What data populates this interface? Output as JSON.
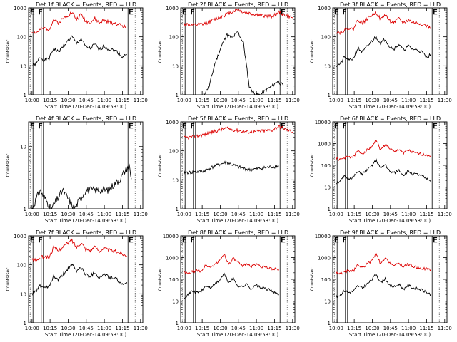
{
  "figure": {
    "background": "#ffffff",
    "event_color": "#000000",
    "lld_color": "#dd0000",
    "marker_labels": [
      "E",
      "F",
      "E"
    ]
  },
  "chart_data": [
    {
      "type": "line",
      "title": "Det 1f BLACK = Events, RED = LLD",
      "xlabel": "Start Time (20-Dec-14 09:53:00)",
      "ylabel": "Counts/sec",
      "xticks": [
        "10:00",
        "10:15",
        "10:30",
        "10:45",
        "11:00",
        "11:15",
        "11:30"
      ],
      "ytick_labels": [
        "1",
        "10",
        "100",
        "1000"
      ],
      "xlim": [
        0,
        100
      ],
      "ylim": [
        1,
        1000
      ],
      "yscale": "log",
      "markers": [
        {
          "label": "E",
          "x": 2
        },
        {
          "label": "F",
          "x": 8
        },
        {
          "label": "E",
          "x": 87
        }
      ],
      "series": [
        {
          "name": "Events",
          "color": "#000000",
          "x": [
            3,
            7,
            10,
            14,
            18,
            22,
            26,
            30,
            34,
            38,
            42,
            46,
            50,
            54,
            58,
            62,
            66,
            70,
            74,
            78,
            82,
            86
          ],
          "y": [
            10,
            12,
            20,
            15,
            18,
            40,
            30,
            45,
            70,
            100,
            60,
            85,
            45,
            40,
            55,
            35,
            48,
            38,
            35,
            30,
            20,
            25
          ]
        },
        {
          "name": "LLD",
          "color": "#dd0000",
          "x": [
            3,
            7,
            10,
            14,
            18,
            22,
            26,
            30,
            34,
            38,
            42,
            46,
            50,
            54,
            58,
            62,
            66,
            70,
            74,
            78,
            82,
            86
          ],
          "y": [
            150,
            140,
            170,
            200,
            180,
            400,
            300,
            420,
            550,
            700,
            400,
            600,
            350,
            320,
            420,
            300,
            380,
            320,
            300,
            280,
            240,
            200
          ]
        }
      ]
    },
    {
      "type": "line",
      "title": "Det 2f BLACK = Events, RED = LLD",
      "xlabel": "Start Time (20-Dec-14 09:53:00)",
      "ylabel": "Counts/sec",
      "xticks": [
        "10:00",
        "10:15",
        "10:30",
        "10:45",
        "11:00",
        "11:15",
        "11:30"
      ],
      "ytick_labels": [
        "1",
        "10",
        "100",
        "1000"
      ],
      "xlim": [
        0,
        100
      ],
      "ylim": [
        1,
        1000
      ],
      "yscale": "log",
      "markers": [
        {
          "label": "E",
          "x": 2
        },
        {
          "label": "F",
          "x": 8
        },
        {
          "label": "E",
          "x": 87
        }
      ],
      "series": [
        {
          "name": "Events",
          "color": "#000000",
          "x": [
            20,
            25,
            30,
            35,
            40,
            45,
            50,
            55,
            60,
            65,
            70,
            75,
            80,
            85,
            90
          ],
          "y": [
            1,
            2,
            12,
            40,
            120,
            90,
            150,
            60,
            2,
            1,
            1,
            1.5,
            2,
            3,
            2
          ]
        },
        {
          "name": "LLD",
          "color": "#dd0000",
          "x": [
            3,
            10,
            20,
            30,
            40,
            50,
            55,
            60,
            70,
            80,
            86,
            92,
            98
          ],
          "y": [
            280,
            250,
            270,
            400,
            600,
            900,
            700,
            650,
            550,
            500,
            700,
            550,
            450
          ]
        }
      ]
    },
    {
      "type": "line",
      "title": "Det 3f BLACK = Events, RED = LLD",
      "xlabel": "Start Time (20-Dec-14 09:53:00)",
      "ylabel": "Counts/sec",
      "xticks": [
        "10:00",
        "10:15",
        "10:30",
        "10:45",
        "11:00",
        "11:15",
        "11:30"
      ],
      "ytick_labels": [
        "1",
        "10",
        "100",
        "1000"
      ],
      "xlim": [
        0,
        100
      ],
      "ylim": [
        1,
        1000
      ],
      "yscale": "log",
      "markers": [
        {
          "label": "E",
          "x": 2
        },
        {
          "label": "F",
          "x": 8
        },
        {
          "label": "E",
          "x": 87
        }
      ],
      "series": [
        {
          "name": "Events",
          "color": "#000000",
          "x": [
            3,
            7,
            10,
            14,
            18,
            22,
            26,
            30,
            34,
            38,
            42,
            46,
            50,
            54,
            58,
            62,
            66,
            70,
            74,
            78,
            82,
            86
          ],
          "y": [
            10,
            12,
            20,
            15,
            18,
            40,
            30,
            45,
            70,
            100,
            60,
            85,
            45,
            40,
            55,
            35,
            48,
            38,
            35,
            30,
            20,
            25
          ]
        },
        {
          "name": "LLD",
          "color": "#dd0000",
          "x": [
            3,
            7,
            10,
            14,
            18,
            22,
            26,
            30,
            34,
            38,
            42,
            46,
            50,
            54,
            58,
            62,
            66,
            70,
            74,
            78,
            82,
            86
          ],
          "y": [
            150,
            140,
            170,
            200,
            180,
            400,
            300,
            420,
            550,
            700,
            400,
            600,
            350,
            320,
            420,
            300,
            380,
            320,
            300,
            280,
            240,
            200
          ]
        }
      ]
    },
    {
      "type": "line",
      "title": "Det 4f BLACK = Events, RED = LLD",
      "xlabel": "Start Time (20-Dec-14 09:53:00)",
      "ylabel": "Counts/sec",
      "xticks": [
        "10:00",
        "10:15",
        "10:30",
        "10:45",
        "11:00",
        "11:15",
        "11:30"
      ],
      "ytick_labels": [
        "1",
        "10"
      ],
      "xlim": [
        0,
        100
      ],
      "ylim": [
        1,
        25
      ],
      "yscale": "log",
      "markers": [
        {
          "label": "E",
          "x": 2
        },
        {
          "label": "F",
          "x": 8
        },
        {
          "label": "E",
          "x": 87
        }
      ],
      "series": [
        {
          "name": "Events",
          "color": "#000000",
          "x": [
            3,
            10,
            20,
            30,
            40,
            50,
            60,
            70,
            75,
            80,
            84,
            88,
            90
          ],
          "y": [
            1,
            2,
            1,
            2,
            1,
            2,
            2,
            2,
            2.5,
            3,
            4,
            5,
            3
          ]
        }
      ]
    },
    {
      "type": "line",
      "title": "Det 5f BLACK = Events, RED = LLD",
      "xlabel": "Start Time (20-Dec-14 09:53:00)",
      "ylabel": "Counts/sec",
      "xticks": [
        "10:00",
        "10:15",
        "10:30",
        "10:45",
        "11:00",
        "11:15",
        "11:30"
      ],
      "ytick_labels": [
        "1",
        "10",
        "100",
        "1000"
      ],
      "xlim": [
        0,
        100
      ],
      "ylim": [
        1,
        1000
      ],
      "yscale": "log",
      "markers": [
        {
          "label": "E",
          "x": 2
        },
        {
          "label": "F",
          "x": 8
        },
        {
          "label": "E",
          "x": 87
        }
      ],
      "series": [
        {
          "name": "Events",
          "color": "#000000",
          "x": [
            3,
            10,
            20,
            30,
            40,
            50,
            60,
            70,
            80,
            86
          ],
          "y": [
            18,
            18,
            20,
            30,
            40,
            28,
            22,
            25,
            28,
            30
          ]
        },
        {
          "name": "LLD",
          "color": "#dd0000",
          "x": [
            3,
            10,
            20,
            30,
            40,
            50,
            60,
            70,
            80,
            86,
            92,
            98
          ],
          "y": [
            280,
            300,
            360,
            480,
            600,
            500,
            450,
            480,
            520,
            700,
            550,
            450
          ]
        }
      ]
    },
    {
      "type": "line",
      "title": "Det 6f BLACK = Events, RED = LLD",
      "xlabel": "Start Time (20-Dec-14 09:53:00)",
      "ylabel": "Counts/sec",
      "xticks": [
        "10:00",
        "10:15",
        "10:30",
        "10:45",
        "11:00",
        "11:15",
        "11:30"
      ],
      "ytick_labels": [
        "1",
        "10",
        "100",
        "1000",
        "10000"
      ],
      "xlim": [
        0,
        100
      ],
      "ylim": [
        1,
        10000
      ],
      "yscale": "log",
      "markers": [
        {
          "label": "E",
          "x": 2
        },
        {
          "label": "F",
          "x": 8
        },
        {
          "label": "E",
          "x": 87
        }
      ],
      "series": [
        {
          "name": "Events",
          "color": "#000000",
          "x": [
            3,
            7,
            10,
            14,
            18,
            22,
            26,
            30,
            34,
            38,
            42,
            46,
            50,
            54,
            58,
            62,
            66,
            70,
            74,
            78,
            82,
            86
          ],
          "y": [
            15,
            20,
            30,
            25,
            28,
            50,
            40,
            60,
            90,
            180,
            70,
            110,
            50,
            45,
            60,
            35,
            55,
            40,
            38,
            32,
            25,
            20
          ]
        },
        {
          "name": "LLD",
          "color": "#dd0000",
          "x": [
            3,
            7,
            10,
            14,
            18,
            22,
            26,
            30,
            34,
            38,
            42,
            46,
            50,
            54,
            58,
            62,
            66,
            70,
            74,
            78,
            82,
            86
          ],
          "y": [
            200,
            180,
            220,
            250,
            240,
            450,
            350,
            500,
            700,
            1500,
            500,
            900,
            600,
            400,
            550,
            380,
            500,
            400,
            350,
            320,
            300,
            280
          ]
        }
      ]
    },
    {
      "type": "line",
      "title": "Det 7f BLACK = Events, RED = LLD",
      "xlabel": "Start Time (20-Dec-14 09:53:00)",
      "ylabel": "Counts/sec",
      "xticks": [
        "10:00",
        "10:15",
        "10:30",
        "10:45",
        "11:00",
        "11:15",
        "11:30"
      ],
      "ytick_labels": [
        "1",
        "10",
        "100",
        "1000"
      ],
      "xlim": [
        0,
        100
      ],
      "ylim": [
        1,
        1000
      ],
      "yscale": "log",
      "markers": [
        {
          "label": "E",
          "x": 2
        },
        {
          "label": "F",
          "x": 8
        },
        {
          "label": "E",
          "x": 87
        }
      ],
      "series": [
        {
          "name": "Events",
          "color": "#000000",
          "x": [
            3,
            7,
            10,
            14,
            18,
            22,
            26,
            30,
            34,
            38,
            42,
            46,
            50,
            54,
            58,
            62,
            66,
            70,
            74,
            78,
            82,
            86
          ],
          "y": [
            10,
            12,
            20,
            15,
            18,
            40,
            30,
            45,
            70,
            100,
            60,
            85,
            45,
            40,
            55,
            35,
            48,
            38,
            35,
            30,
            20,
            25
          ]
        },
        {
          "name": "LLD",
          "color": "#dd0000",
          "x": [
            3,
            7,
            10,
            14,
            18,
            22,
            26,
            30,
            34,
            38,
            42,
            46,
            50,
            54,
            58,
            62,
            66,
            70,
            74,
            78,
            82,
            86
          ],
          "y": [
            150,
            140,
            170,
            200,
            180,
            400,
            300,
            420,
            550,
            700,
            400,
            600,
            350,
            320,
            420,
            300,
            380,
            320,
            300,
            280,
            240,
            200
          ]
        }
      ]
    },
    {
      "type": "line",
      "title": "Det 8f BLACK = Events, RED = LLD",
      "xlabel": "Start Time (20-Dec-14 09:53:00)",
      "ylabel": "Counts/sec",
      "xticks": [
        "10:00",
        "10:15",
        "10:30",
        "10:45",
        "11:00",
        "11:15",
        "11:30"
      ],
      "ytick_labels": [
        "1",
        "10",
        "100",
        "1000",
        "10000"
      ],
      "xlim": [
        0,
        100
      ],
      "ylim": [
        1,
        10000
      ],
      "yscale": "log",
      "markers": [
        {
          "label": "E",
          "x": 2
        },
        {
          "label": "F",
          "x": 8
        },
        {
          "label": "E",
          "x": 87
        }
      ],
      "series": [
        {
          "name": "Events",
          "color": "#000000",
          "x": [
            3,
            7,
            10,
            14,
            18,
            22,
            26,
            30,
            34,
            38,
            42,
            46,
            50,
            54,
            58,
            62,
            66,
            70,
            74,
            78,
            82,
            86
          ],
          "y": [
            15,
            20,
            30,
            25,
            28,
            50,
            40,
            60,
            90,
            180,
            70,
            110,
            50,
            45,
            60,
            35,
            55,
            40,
            38,
            32,
            25,
            20
          ]
        },
        {
          "name": "LLD",
          "color": "#dd0000",
          "x": [
            3,
            7,
            10,
            14,
            18,
            22,
            26,
            30,
            34,
            38,
            42,
            46,
            50,
            54,
            58,
            62,
            66,
            70,
            74,
            78,
            82,
            86
          ],
          "y": [
            200,
            180,
            220,
            250,
            240,
            450,
            350,
            500,
            700,
            1500,
            500,
            900,
            600,
            400,
            550,
            380,
            500,
            400,
            350,
            320,
            300,
            280
          ]
        }
      ]
    },
    {
      "type": "line",
      "title": "Det 9f BLACK = Events, RED = LLD",
      "xlabel": "Start Time (20-Dec-14 09:53:00)",
      "ylabel": "Counts/sec",
      "xticks": [
        "10:00",
        "10:15",
        "10:30",
        "10:45",
        "11:00",
        "11:15",
        "11:30"
      ],
      "ytick_labels": [
        "1",
        "10",
        "100",
        "1000",
        "10000"
      ],
      "xlim": [
        0,
        100
      ],
      "ylim": [
        1,
        10000
      ],
      "yscale": "log",
      "markers": [
        {
          "label": "E",
          "x": 2
        },
        {
          "label": "F",
          "x": 8
        },
        {
          "label": "E",
          "x": 87
        }
      ],
      "series": [
        {
          "name": "Events",
          "color": "#000000",
          "x": [
            3,
            7,
            10,
            14,
            18,
            22,
            26,
            30,
            34,
            38,
            42,
            46,
            50,
            54,
            58,
            62,
            66,
            70,
            74,
            78,
            82,
            86
          ],
          "y": [
            15,
            20,
            30,
            25,
            28,
            50,
            40,
            60,
            90,
            180,
            70,
            110,
            50,
            45,
            60,
            35,
            55,
            40,
            38,
            32,
            25,
            20
          ]
        },
        {
          "name": "LLD",
          "color": "#dd0000",
          "x": [
            3,
            7,
            10,
            14,
            18,
            22,
            26,
            30,
            34,
            38,
            42,
            46,
            50,
            54,
            58,
            62,
            66,
            70,
            74,
            78,
            82,
            86
          ],
          "y": [
            200,
            180,
            220,
            250,
            240,
            450,
            350,
            500,
            700,
            1500,
            500,
            900,
            600,
            400,
            550,
            380,
            500,
            400,
            350,
            320,
            300,
            280
          ]
        }
      ]
    }
  ]
}
